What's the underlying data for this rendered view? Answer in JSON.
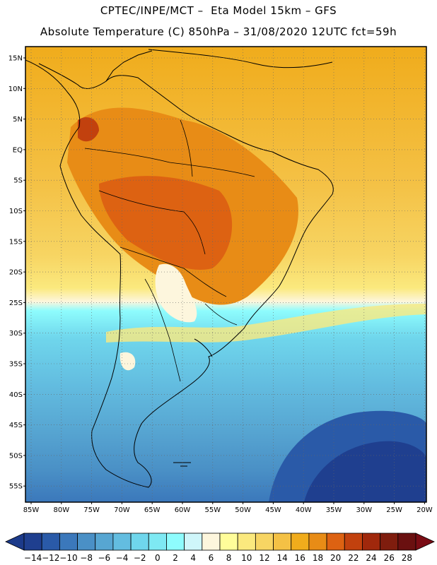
{
  "header": {
    "line1": "CPTEC/INPE/MCT –  Eta Model 15km – GFS",
    "line2": "Absolute Temperature (C) 850hPa – 31/08/2020 12UTC fct=59h"
  },
  "map": {
    "lat_labels": [
      "15N",
      "10N",
      "5N",
      "EQ",
      "5S",
      "10S",
      "15S",
      "20S",
      "25S",
      "30S",
      "35S",
      "40S",
      "45S",
      "50S",
      "55S"
    ],
    "lon_labels": [
      "85W",
      "80W",
      "75W",
      "70W",
      "65W",
      "60W",
      "55W",
      "50W",
      "45W",
      "40W",
      "35W",
      "30W",
      "25W",
      "20W"
    ]
  },
  "colorbar": {
    "labels": [
      "-14",
      "-12",
      "-10",
      "-8",
      "-6",
      "-4",
      "-2",
      "0",
      "2",
      "4",
      "6",
      "8",
      "10",
      "12",
      "14",
      "16",
      "18",
      "20",
      "22",
      "24",
      "26",
      "28"
    ],
    "colors": [
      "#1f3f8f",
      "#2a5aa8",
      "#3b78bb",
      "#4a90c6",
      "#57a6d2",
      "#63bde0",
      "#6fd6ec",
      "#7ee9f3",
      "#8efcfd",
      "#cff6fa",
      "#fdf6dd",
      "#fffd9a",
      "#fbe97e",
      "#f7d563",
      "#f4c145",
      "#f0ac1c",
      "#e88c16",
      "#dd6212",
      "#c2410e",
      "#a0280c",
      "#7f1d0e",
      "#6a1010"
    ],
    "low_color": "#1c3a8a",
    "high_color": "#7a0c14"
  }
}
